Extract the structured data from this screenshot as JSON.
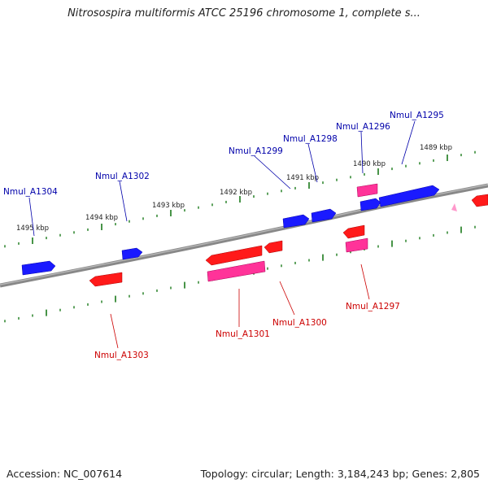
{
  "title": "Nitrosospira multiformis ATCC 25196 chromosome 1, complete s...",
  "footer": {
    "accession": "Accession: NC_007614",
    "topology": "Topology: circular; Length: 3,184,243 bp; Genes: 2,805"
  },
  "scale_labels": [
    "1495 kbp",
    "1494 kbp",
    "1493 kbp",
    "1492 kbp",
    "1491 kbp",
    "1490 kbp",
    "1489 kbp"
  ],
  "genes_forward": [
    "Nmul_A1304",
    "Nmul_A1302",
    "Nmul_A1299",
    "Nmul_A1298",
    "Nmul_A1296",
    "Nmul_A1295"
  ],
  "genes_reverse": [
    "Nmul_A1303",
    "Nmul_A1301",
    "Nmul_A1300",
    "Nmul_A1297"
  ],
  "colors": {
    "forward_cds": "#1a1aff",
    "reverse_cds": "#ff1a1a",
    "rna": "#ff3399",
    "tick": "#1a7a1a",
    "backbone": "#888888"
  }
}
